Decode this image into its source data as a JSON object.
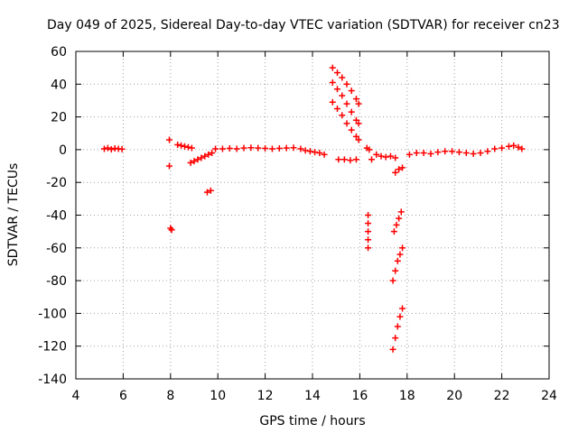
{
  "chart_data": {
    "type": "scatter",
    "title": "Day 049 of 2025, Sidereal Day-to-day VTEC variation (SDTVAR) for receiver cn23",
    "xlabel": "GPS time / hours",
    "ylabel": "SDTVAR / TECUs",
    "xlim": [
      4,
      24
    ],
    "ylim": [
      -140,
      60
    ],
    "xticks": [
      "4",
      "6",
      "8",
      "10",
      "12",
      "14",
      "16",
      "18",
      "20",
      "22",
      "24"
    ],
    "yticks": [
      "60",
      "40",
      "20",
      "0",
      "-20",
      "-40",
      "-60",
      "-80",
      "-100",
      "-120",
      "-140"
    ],
    "grid": true,
    "marker": "+",
    "color": "#ff0000",
    "series": [
      {
        "name": "SDTVAR",
        "points": [
          [
            5.2,
            0.5
          ],
          [
            5.35,
            1.0
          ],
          [
            5.5,
            0.2
          ],
          [
            5.65,
            0.8
          ],
          [
            5.8,
            0.5
          ],
          [
            5.95,
            0.3
          ],
          [
            7.95,
            6
          ],
          [
            7.95,
            -10
          ],
          [
            8.0,
            -48
          ],
          [
            8.05,
            -49
          ],
          [
            8.3,
            3
          ],
          [
            8.45,
            2.5
          ],
          [
            8.6,
            2
          ],
          [
            8.75,
            1.5
          ],
          [
            8.9,
            1
          ],
          [
            8.85,
            -8
          ],
          [
            9.0,
            -7
          ],
          [
            9.15,
            -6
          ],
          [
            9.3,
            -5
          ],
          [
            9.45,
            -4
          ],
          [
            9.6,
            -3
          ],
          [
            9.75,
            -2
          ],
          [
            9.55,
            -26
          ],
          [
            9.7,
            -25
          ],
          [
            9.9,
            0.5
          ],
          [
            10.2,
            0.5
          ],
          [
            10.5,
            0.8
          ],
          [
            10.8,
            0.5
          ],
          [
            11.1,
            1.0
          ],
          [
            11.4,
            1.2
          ],
          [
            11.7,
            1.0
          ],
          [
            12.0,
            0.8
          ],
          [
            12.3,
            0.5
          ],
          [
            12.6,
            0.8
          ],
          [
            12.9,
            1.0
          ],
          [
            13.2,
            1.2
          ],
          [
            13.5,
            0.5
          ],
          [
            13.7,
            -0.5
          ],
          [
            13.9,
            -1.0
          ],
          [
            14.1,
            -1.5
          ],
          [
            14.3,
            -2
          ],
          [
            14.5,
            -3
          ],
          [
            14.85,
            50
          ],
          [
            15.05,
            47
          ],
          [
            15.25,
            44
          ],
          [
            15.45,
            40
          ],
          [
            15.65,
            36
          ],
          [
            15.85,
            31
          ],
          [
            15.95,
            28
          ],
          [
            14.85,
            41
          ],
          [
            15.05,
            37
          ],
          [
            15.25,
            33
          ],
          [
            15.45,
            28
          ],
          [
            15.65,
            23
          ],
          [
            15.85,
            18
          ],
          [
            15.95,
            16
          ],
          [
            14.85,
            29
          ],
          [
            15.05,
            25
          ],
          [
            15.25,
            21
          ],
          [
            15.45,
            16
          ],
          [
            15.65,
            12
          ],
          [
            15.85,
            8
          ],
          [
            15.95,
            6
          ],
          [
            15.1,
            -6
          ],
          [
            15.35,
            -6
          ],
          [
            15.6,
            -6.5
          ],
          [
            15.85,
            -6
          ],
          [
            16.3,
            1
          ],
          [
            16.4,
            0
          ],
          [
            16.5,
            -6
          ],
          [
            16.35,
            -40
          ],
          [
            16.35,
            -45
          ],
          [
            16.35,
            -50
          ],
          [
            16.35,
            -55
          ],
          [
            16.35,
            -60
          ],
          [
            16.7,
            -3
          ],
          [
            16.9,
            -4
          ],
          [
            17.1,
            -4.5
          ],
          [
            17.3,
            -4
          ],
          [
            17.5,
            -5
          ],
          [
            17.5,
            -14
          ],
          [
            17.65,
            -12
          ],
          [
            17.8,
            -11
          ],
          [
            17.45,
            -50
          ],
          [
            17.55,
            -46
          ],
          [
            17.65,
            -42
          ],
          [
            17.75,
            -38
          ],
          [
            17.4,
            -80
          ],
          [
            17.5,
            -74
          ],
          [
            17.6,
            -68
          ],
          [
            17.7,
            -64
          ],
          [
            17.8,
            -60
          ],
          [
            17.4,
            -122
          ],
          [
            17.5,
            -115
          ],
          [
            17.6,
            -108
          ],
          [
            17.7,
            -102
          ],
          [
            17.8,
            -97
          ],
          [
            18.1,
            -3
          ],
          [
            18.4,
            -2
          ],
          [
            18.7,
            -2
          ],
          [
            19.0,
            -2.5
          ],
          [
            19.3,
            -1.5
          ],
          [
            19.6,
            -1
          ],
          [
            19.9,
            -1
          ],
          [
            20.2,
            -1.5
          ],
          [
            20.5,
            -2
          ],
          [
            20.8,
            -2.5
          ],
          [
            21.1,
            -2
          ],
          [
            21.4,
            -1
          ],
          [
            21.7,
            0.5
          ],
          [
            22.0,
            1
          ],
          [
            22.3,
            2
          ],
          [
            22.5,
            2.5
          ],
          [
            22.7,
            1.5
          ],
          [
            22.85,
            0.5
          ]
        ]
      }
    ]
  }
}
